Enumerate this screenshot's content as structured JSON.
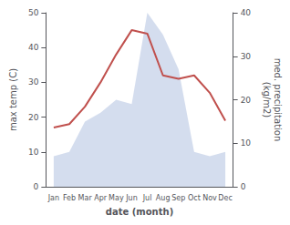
{
  "chart_data": {
    "type": "line",
    "categories": [
      "Jan",
      "Feb",
      "Mar",
      "Apr",
      "May",
      "Jun",
      "Jul",
      "Aug",
      "Sep",
      "Oct",
      "Nov",
      "Dec"
    ],
    "xlabel": "date (month)",
    "ylabel": "max temp (C)",
    "y2label": "med. precipitation\n(kg/m2)",
    "ylim": [
      0,
      50
    ],
    "yticks": [
      0,
      10,
      20,
      30,
      40,
      50
    ],
    "y2lim": [
      0,
      40
    ],
    "y2ticks": [
      0,
      10,
      20,
      30,
      40
    ],
    "grid": false,
    "series": [
      {
        "type": "area",
        "axis": "y2",
        "color": "#aabbdd",
        "values": [
          7,
          8,
          15,
          17,
          20,
          19,
          40,
          35,
          27,
          8,
          7,
          8
        ]
      },
      {
        "type": "line",
        "color": "#c0504d",
        "values": [
          17,
          18,
          23,
          30,
          38,
          45,
          44,
          32,
          31,
          32,
          27,
          19
        ]
      }
    ]
  }
}
